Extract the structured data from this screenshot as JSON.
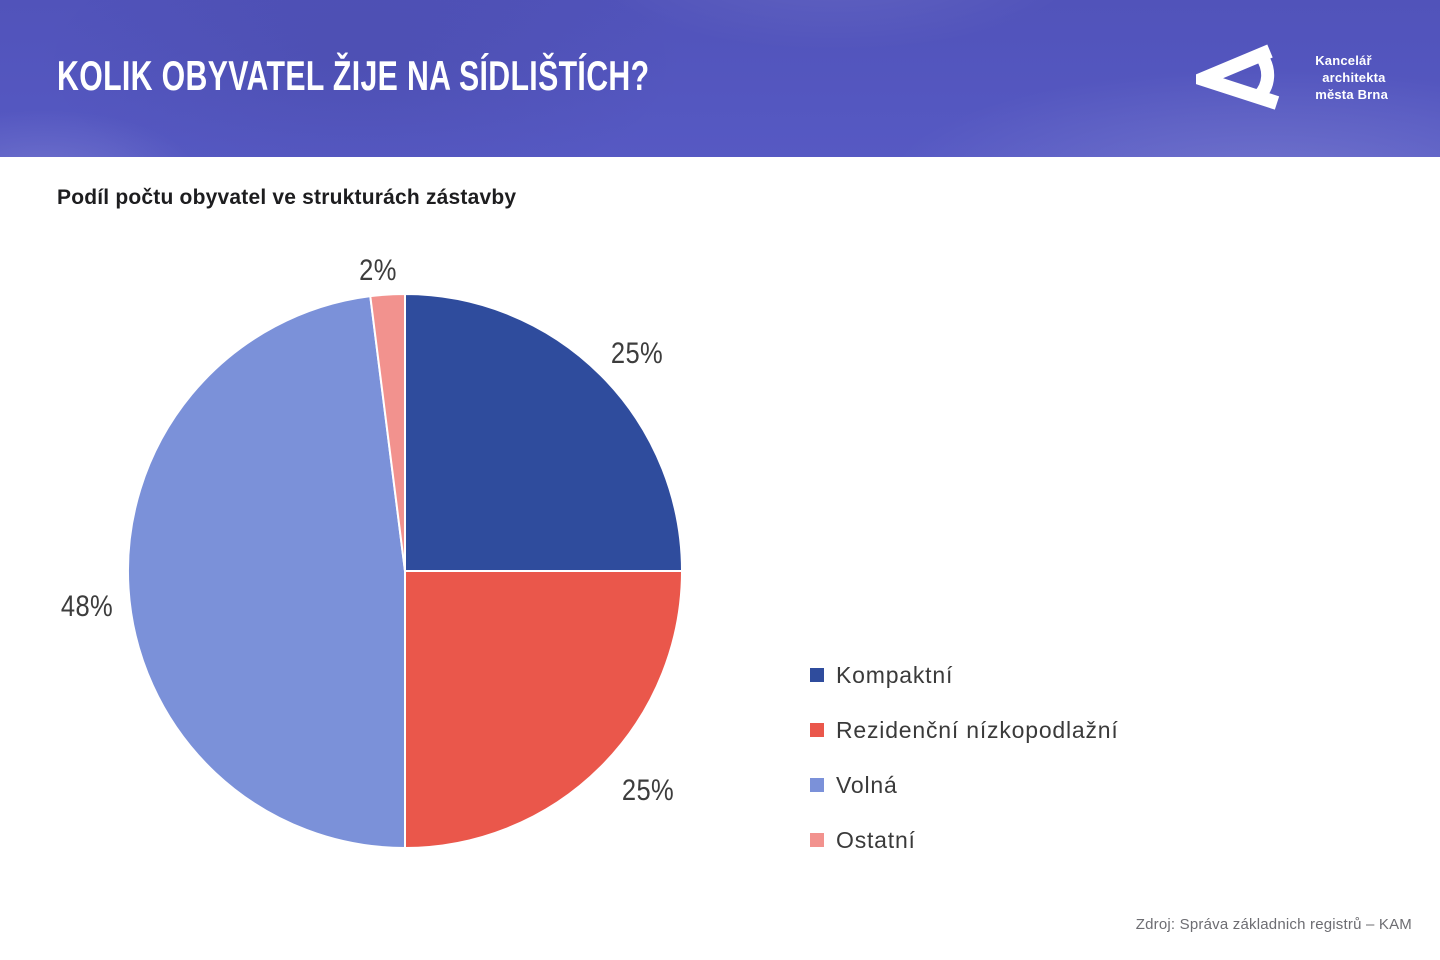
{
  "header": {
    "title": "KOLIK OBYVATEL ŽIJE NA SÍDLIŠTÍCH?",
    "background_color": "#5356bf",
    "logo": {
      "icon": "kam-brno-triangle-logo",
      "org_lines": [
        "Kancelář",
        "architekta",
        "města Brna"
      ]
    }
  },
  "subtitle": "Podíl počtu obyvatel ve strukturách zástavby",
  "footer": {
    "source": "Zdroj: Správa základnich registrů – KAM"
  },
  "chart_data": {
    "type": "pie",
    "title": "Podíl počtu obyvatel ve strukturách zástavby",
    "units": "percent",
    "start_angle_deg": 0,
    "direction": "clockwise",
    "legend_position": "right",
    "label_color": "#3d3d3d",
    "slices": [
      {
        "name": "Kompaktní",
        "value": 25,
        "label": "25%",
        "color": "#2f4c9d"
      },
      {
        "name": "Rezidenční nízkopodlažní",
        "value": 25,
        "label": "25%",
        "color": "#ea574b"
      },
      {
        "name": "Volná",
        "value": 48,
        "label": "48%",
        "color": "#7b91d9"
      },
      {
        "name": "Ostatní",
        "value": 2,
        "label": "2%",
        "color": "#f2928e"
      }
    ]
  }
}
